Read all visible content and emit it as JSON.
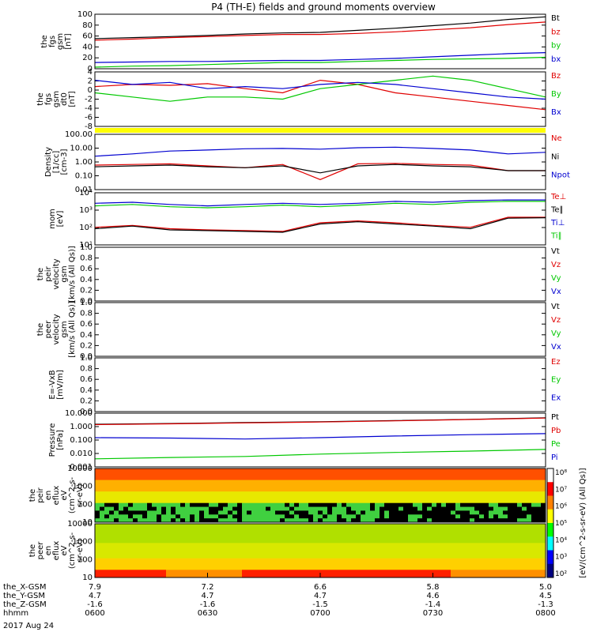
{
  "title": "P4 (TH-E) fields and ground moments overview",
  "date_label": "2017 Aug 24",
  "colors": {
    "black": "#000000",
    "red": "#e00000",
    "green": "#00c800",
    "blue": "#0000d0",
    "yellow": "#ffff00"
  },
  "chart_data": {
    "type": "line",
    "x": {
      "unit": "hhmm",
      "range": [
        "0600",
        "0800"
      ],
      "ticks": [
        "0600",
        "0630",
        "0700",
        "0730",
        "0800"
      ]
    },
    "panels": [
      {
        "ylabel": [
          "the",
          "fgs",
          "gsm",
          "[nT]"
        ],
        "ylim": [
          0,
          105
        ],
        "yticks": [
          "100",
          "80",
          "60",
          "40",
          "20",
          "0"
        ],
        "series": [
          {
            "name": "Bt",
            "color": "black",
            "x": [
              0,
              10,
              20,
              30,
              40,
              50,
              60,
              70,
              80,
              90,
              100,
              110,
              120
            ],
            "y": [
              58,
              60,
              62,
              64,
              67,
              69,
              70,
              74,
              78,
              83,
              88,
              95,
              100
            ]
          },
          {
            "name": "bz",
            "color": "red",
            "x": [
              0,
              10,
              20,
              30,
              40,
              50,
              60,
              70,
              80,
              90,
              100,
              110,
              120
            ],
            "y": [
              55,
              57,
              60,
              62,
              64,
              66,
              66,
              68,
              71,
              75,
              79,
              85,
              90
            ]
          },
          {
            "name": "by",
            "color": "green",
            "x": [
              0,
              10,
              20,
              30,
              40,
              50,
              60,
              70,
              80,
              90,
              100,
              110,
              120
            ],
            "y": [
              3,
              5,
              6,
              8,
              10,
              12,
              12,
              14,
              16,
              18,
              19,
              20,
              22
            ]
          },
          {
            "name": "bx",
            "color": "blue",
            "x": [
              0,
              10,
              20,
              30,
              40,
              50,
              60,
              70,
              80,
              90,
              100,
              110,
              120
            ],
            "y": [
              12,
              13,
              14,
              14,
              15,
              16,
              16,
              18,
              20,
              23,
              26,
              29,
              31
            ]
          }
        ]
      },
      {
        "ylabel": [
          "the",
          "fgs",
          "gsm",
          "dt0",
          "[nT]"
        ],
        "ylim": [
          -9,
          4
        ],
        "yticks": [
          "4",
          "2",
          "0",
          "-2",
          "-4",
          "-6",
          "-8"
        ],
        "series": [
          {
            "name": "Bz",
            "color": "red",
            "x": [
              0,
              10,
              20,
              30,
              40,
              50,
              60,
              70,
              80,
              90,
              100,
              110,
              120
            ],
            "y": [
              0.5,
              1,
              0.8,
              1.2,
              0,
              -1,
              2,
              1,
              -1,
              -2,
              -3,
              -4,
              -5
            ]
          },
          {
            "name": "By",
            "color": "green",
            "x": [
              0,
              10,
              20,
              30,
              40,
              50,
              60,
              70,
              80,
              90,
              100,
              110,
              120
            ],
            "y": [
              -1,
              -2,
              -3,
              -2,
              -2,
              -2.5,
              0,
              1,
              2,
              3,
              2,
              0,
              -2
            ]
          },
          {
            "name": "Bx",
            "color": "blue",
            "x": [
              0,
              10,
              20,
              30,
              40,
              50,
              60,
              70,
              80,
              90,
              100,
              110,
              120
            ],
            "y": [
              2,
              1,
              1.5,
              0,
              0.5,
              0,
              1,
              1.5,
              1,
              0,
              -1,
              -2,
              -2.5
            ]
          }
        ]
      },
      {
        "ylabel": [
          "Density",
          "[1/cc]",
          "[cm-3]"
        ],
        "log": true,
        "ylim": [
          0.01,
          200
        ],
        "yticks": [
          "100.00",
          "10.00",
          "1.00",
          "0.10",
          "0.01"
        ],
        "series": [
          {
            "name": "Ne",
            "color": "red",
            "x": [
              0,
              10,
              20,
              30,
              40,
              50,
              60,
              70,
              80,
              90,
              100,
              110,
              120
            ],
            "y": [
              0.8,
              0.9,
              1,
              0.7,
              0.5,
              0.9,
              0.06,
              1,
              1.1,
              0.9,
              0.8,
              0.3,
              0.3
            ]
          },
          {
            "name": "Ni",
            "color": "black",
            "x": [
              0,
              10,
              20,
              30,
              40,
              50,
              60,
              70,
              80,
              90,
              100,
              110,
              120
            ],
            "y": [
              0.6,
              0.7,
              0.8,
              0.6,
              0.5,
              0.7,
              0.2,
              0.7,
              0.9,
              0.7,
              0.6,
              0.3,
              0.3
            ]
          },
          {
            "name": "Npot",
            "color": "blue",
            "x": [
              0,
              10,
              20,
              30,
              40,
              50,
              60,
              70,
              80,
              90,
              100,
              110,
              120
            ],
            "y": [
              4,
              6,
              10,
              12,
              15,
              16,
              14,
              18,
              20,
              16,
              12,
              6,
              8
            ]
          }
        ]
      },
      {
        "ylabel": [
          "mom",
          "[eV]"
        ],
        "log": true,
        "ylim": [
          10,
          30000
        ],
        "yticks": [
          "10⁴",
          "10³",
          "10²",
          "10¹"
        ],
        "series": [
          {
            "name": "Te⊥",
            "color": "red",
            "x": [
              0,
              10,
              20,
              30,
              40,
              50,
              60,
              70,
              80,
              90,
              100,
              110,
              120
            ],
            "y": [
              150,
              200,
              120,
              100,
              90,
              80,
              300,
              400,
              300,
              200,
              150,
              700,
              700
            ]
          },
          {
            "name": "Te∥",
            "color": "black",
            "x": [
              0,
              10,
              20,
              30,
              40,
              50,
              60,
              70,
              80,
              90,
              100,
              110,
              120
            ],
            "y": [
              120,
              180,
              100,
              90,
              80,
              70,
              250,
              350,
              250,
              180,
              120,
              600,
              650
            ]
          },
          {
            "name": "Ti⊥",
            "color": "blue",
            "x": [
              0,
              10,
              20,
              30,
              40,
              50,
              60,
              70,
              80,
              90,
              100,
              110,
              120
            ],
            "y": [
              6000,
              7000,
              5000,
              4000,
              5000,
              6000,
              5000,
              6000,
              8000,
              7000,
              9000,
              10000,
              10000
            ]
          },
          {
            "name": "Ti∥",
            "color": "green",
            "x": [
              0,
              10,
              20,
              30,
              40,
              50,
              60,
              70,
              80,
              90,
              100,
              110,
              120
            ],
            "y": [
              4000,
              5000,
              3500,
              3000,
              3500,
              4500,
              3500,
              4500,
              6000,
              5000,
              7000,
              8000,
              8000
            ]
          }
        ]
      },
      {
        "ylabel": [
          "the",
          "peir",
          "velocity",
          "gsm",
          "[km/s (All Qs)]"
        ],
        "ylim": [
          0,
          1
        ],
        "yticks": [
          "1.0",
          "0.8",
          "0.6",
          "0.4",
          "0.2",
          "0.0"
        ],
        "series": [
          {
            "name": "Vt",
            "color": "black"
          },
          {
            "name": "Vz",
            "color": "red"
          },
          {
            "name": "Vy",
            "color": "green"
          },
          {
            "name": "Vx",
            "color": "blue"
          }
        ]
      },
      {
        "ylabel": [
          "the",
          "peer",
          "velocity",
          "gsm",
          "[km/s (All Qs)]"
        ],
        "ylim": [
          0,
          1
        ],
        "yticks": [
          "1.0",
          "0.8",
          "0.6",
          "0.4",
          "0.2",
          "0.0"
        ],
        "series": [
          {
            "name": "Vt",
            "color": "black"
          },
          {
            "name": "Vz",
            "color": "red"
          },
          {
            "name": "Vy",
            "color": "green"
          },
          {
            "name": "Vx",
            "color": "blue"
          }
        ]
      },
      {
        "ylabel": [
          "E=-VxB",
          "[mV/m]"
        ],
        "ylim": [
          0,
          1
        ],
        "yticks": [
          "1.0",
          "0.8",
          "0.6",
          "0.4",
          "0.2",
          "0.0"
        ],
        "series": [
          {
            "name": "Ez",
            "color": "red"
          },
          {
            "name": "Ey",
            "color": "green"
          },
          {
            "name": "Ex",
            "color": "blue"
          }
        ]
      },
      {
        "ylabel": [
          "Pressure",
          "[nPa]"
        ],
        "log": true,
        "ylim": [
          0.001,
          10
        ],
        "yticks": [
          "10.000",
          "1.000",
          "0.100",
          "0.010",
          "0.001"
        ],
        "series": [
          {
            "name": "Pt",
            "color": "black",
            "x": [
              0,
              20,
              40,
              60,
              80,
              100,
              120
            ],
            "y": [
              1.5,
              1.7,
              2,
              2.3,
              2.8,
              3.5,
              4.5
            ]
          },
          {
            "name": "Pb",
            "color": "red",
            "x": [
              0,
              20,
              40,
              60,
              80,
              100,
              120
            ],
            "y": [
              1.4,
              1.6,
              1.9,
              2.2,
              2.7,
              3.4,
              4.3
            ]
          },
          {
            "name": "Pe",
            "color": "green",
            "x": [
              0,
              20,
              40,
              60,
              80,
              100,
              120
            ],
            "y": [
              0.004,
              0.005,
              0.006,
              0.009,
              0.012,
              0.015,
              0.02
            ]
          },
          {
            "name": "Pi",
            "color": "blue",
            "x": [
              0,
              20,
              40,
              60,
              80,
              100,
              120
            ],
            "y": [
              0.15,
              0.14,
              0.12,
              0.15,
              0.2,
              0.25,
              0.3
            ]
          }
        ]
      },
      {
        "type": "heatmap",
        "ylabel": [
          "the",
          "peir",
          "en",
          "eflux",
          "eV",
          "(cm^2-s-",
          "sr-eV)"
        ],
        "yticks": [
          "10000",
          "1000",
          "100",
          "10"
        ]
      },
      {
        "type": "heatmap",
        "ylabel": [
          "the",
          "peer",
          "en",
          "eflux",
          "eV",
          "(cm^2-s-",
          "sr-eV)"
        ],
        "yticks": [
          "10000",
          "1000",
          "100",
          "10"
        ]
      }
    ],
    "colorbar": {
      "label": "[eV/(cm^2-s-sr-eV) (All Qs)]",
      "ticks": [
        "10⁸",
        "10⁷",
        "10⁶",
        "10⁵",
        "10⁴",
        "10³",
        "10²"
      ]
    },
    "ephemeris": {
      "labels": [
        "the_X-GSM",
        "the_Y-GSM",
        "the_Z-GSM",
        "hhmm"
      ],
      "columns": [
        {
          "x": "7.9",
          "y": "4.7",
          "z": "-1.6",
          "t": "0600"
        },
        {
          "x": "7.2",
          "y": "4.7",
          "z": "-1.6",
          "t": "0630"
        },
        {
          "x": "6.6",
          "y": "4.7",
          "z": "-1.5",
          "t": "0700"
        },
        {
          "x": "5.8",
          "y": "4.6",
          "z": "-1.4",
          "t": "0730"
        },
        {
          "x": "5.0",
          "y": "4.5",
          "z": "-1.3",
          "t": "0800"
        }
      ]
    }
  }
}
